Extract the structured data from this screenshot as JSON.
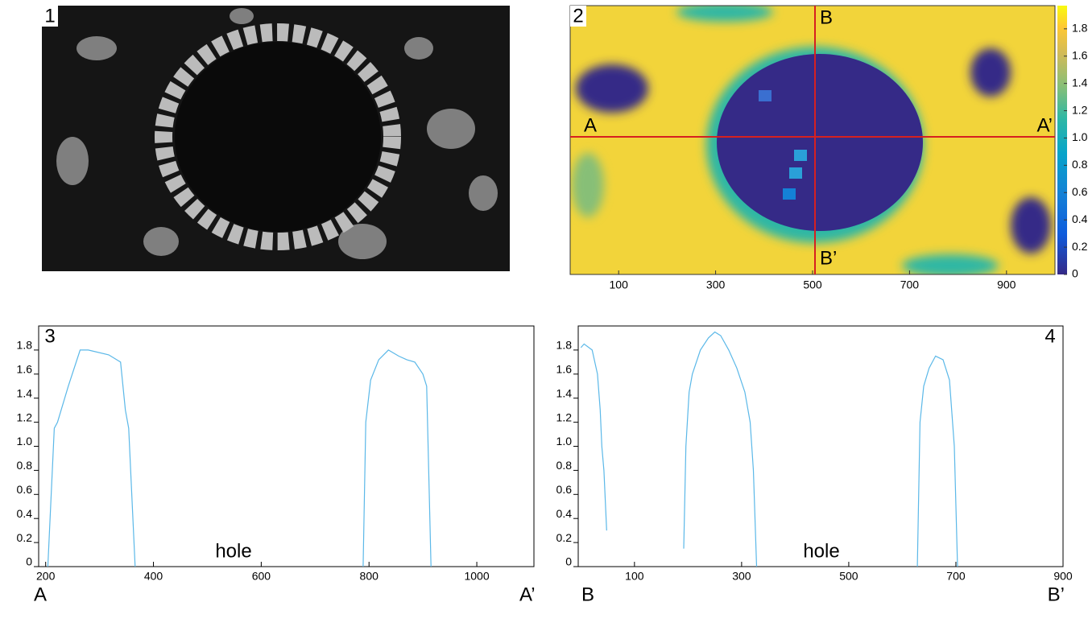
{
  "chart_data": [
    {
      "type": "image",
      "label": "1"
    },
    {
      "type": "heatmap",
      "label": "2",
      "xlim": [
        0,
        1000
      ],
      "xticks": [
        100,
        300,
        500,
        700,
        900
      ],
      "colorbar_ticks": [
        0,
        0.2,
        0.4,
        0.6,
        0.8,
        {
          "value": 1,
          "label": "1.0"
        },
        1.2,
        1.4,
        1.6,
        1.8
      ],
      "colorbar_lim": [
        0,
        1.97
      ],
      "line_color": "#d62020",
      "annotations": [
        "A",
        "A’",
        "B",
        "B’"
      ]
    },
    {
      "type": "line",
      "label": "3",
      "annotation": "hole",
      "start_label": "A",
      "end_label": "A’",
      "xlim": [
        187,
        1106
      ],
      "xticks": [
        200,
        400,
        600,
        800,
        1000
      ],
      "ylim": [
        0,
        2.0
      ],
      "yticks": [
        0,
        0.2,
        0.4,
        0.6,
        0.8,
        {
          "value": 1,
          "label": "1.0"
        },
        1.2,
        1.4,
        1.6,
        1.8
      ],
      "series": [
        {
          "color": "#5bb8e8",
          "x": [
            204,
            216,
            222,
            242,
            264,
            279,
            317,
            339,
            348,
            354,
            366,
            null,
            789,
            794,
            803,
            818,
            836,
            855,
            870,
            885,
            900,
            907,
            915
          ],
          "values": [
            0,
            1.15,
            1.2,
            1.5,
            1.8,
            1.8,
            1.76,
            1.7,
            1.3,
            1.15,
            0,
            null,
            0,
            1.2,
            1.55,
            1.72,
            1.8,
            1.75,
            1.72,
            1.7,
            1.6,
            1.5,
            0
          ]
        }
      ]
    },
    {
      "type": "line",
      "label": "4",
      "annotation": "hole",
      "start_label": "B",
      "end_label": "B’",
      "xlim": [
        -5,
        900
      ],
      "xticks": [
        100,
        300,
        500,
        700,
        900
      ],
      "ylim": [
        0,
        2.0
      ],
      "yticks": [
        0,
        0.2,
        0.4,
        0.6,
        0.8,
        {
          "value": 1,
          "label": "1.0"
        },
        1.2,
        1.4,
        1.6,
        1.8
      ],
      "series": [
        {
          "color": "#5bb8e8",
          "x": [
            0,
            6,
            21,
            31,
            36,
            39,
            43,
            48,
            null,
            192,
            196,
            202,
            208,
            223,
            238,
            250,
            261,
            276,
            291,
            306,
            316,
            322,
            328,
            null,
            628,
            633,
            640,
            650,
            662,
            676,
            688,
            697,
            703
          ],
          "values": [
            1.82,
            1.85,
            1.8,
            1.6,
            1.3,
            1.0,
            0.8,
            0.3,
            null,
            0.15,
            1.0,
            1.45,
            1.6,
            1.8,
            1.9,
            1.95,
            1.92,
            1.8,
            1.65,
            1.45,
            1.2,
            0.8,
            0,
            null,
            0,
            1.2,
            1.5,
            1.65,
            1.75,
            1.72,
            1.55,
            1.0,
            0
          ]
        }
      ]
    }
  ]
}
